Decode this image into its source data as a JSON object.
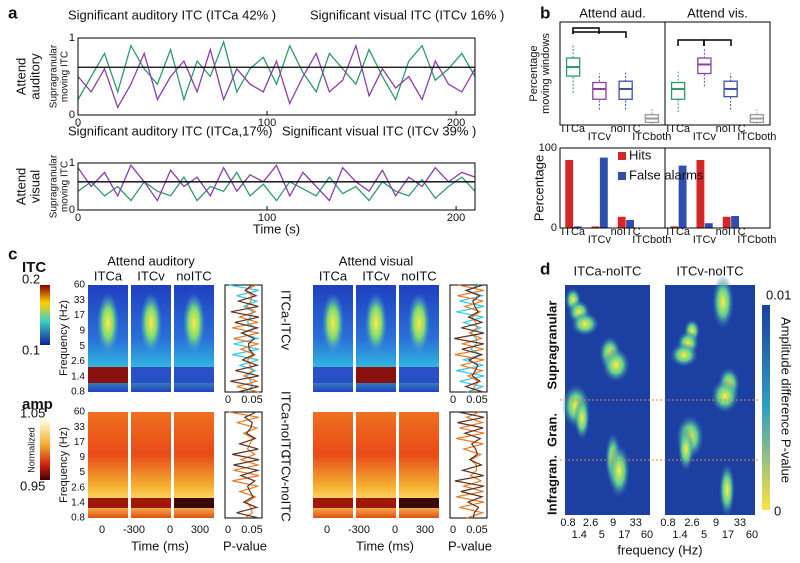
{
  "panel_labels": [
    "a",
    "b",
    "c",
    "d"
  ],
  "chart_data": [
    {
      "type": "line",
      "condition": [
        "Attend",
        "auditory"
      ],
      "ylabel": [
        "Supragranular",
        "moving ITC"
      ],
      "x": [
        0,
        7,
        14,
        21,
        28,
        35,
        42,
        49,
        56,
        63,
        70,
        77,
        84,
        91,
        98,
        105,
        112,
        119,
        126,
        133,
        140,
        147,
        154,
        161,
        168,
        175,
        182,
        189,
        196,
        203,
        210
      ],
      "series": [
        {
          "name": "Significant auditory ITC (ITCa 42% )",
          "color": "#2e9a6c",
          "values": [
            0.2,
            0.5,
            0.8,
            0.3,
            0.9,
            0.6,
            0.4,
            0.85,
            0.2,
            0.7,
            0.5,
            0.95,
            0.3,
            0.6,
            0.75,
            0.4,
            0.9,
            0.55,
            0.3,
            0.8,
            0.6,
            0.4,
            0.85,
            0.5,
            0.2,
            0.7,
            0.9,
            0.45,
            0.6,
            0.8,
            0.5
          ]
        },
        {
          "name": "Significant visual ITC (ITCv 16% )",
          "color": "#8a3fa6",
          "values": [
            0.5,
            0.3,
            0.6,
            0.1,
            0.4,
            0.8,
            0.2,
            0.5,
            0.7,
            0.3,
            0.85,
            0.2,
            0.6,
            0.4,
            0.3,
            0.7,
            0.15,
            0.5,
            0.8,
            0.3,
            0.45,
            0.9,
            0.25,
            0.6,
            0.35,
            0.5,
            0.2,
            0.7,
            0.4,
            0.3,
            0.6
          ]
        }
      ],
      "threshold": 0.62,
      "xlim": [
        0,
        210
      ],
      "xticks": [
        0,
        100,
        200
      ],
      "ylim": [
        0,
        1
      ],
      "yticks": [
        0,
        1
      ]
    },
    {
      "type": "line",
      "condition": [
        "Attend",
        "visual"
      ],
      "ylabel": [
        "Supragranular",
        "moving ITC"
      ],
      "xlabel": "Time (s)",
      "x": [
        0,
        7,
        14,
        21,
        28,
        35,
        42,
        49,
        56,
        63,
        70,
        77,
        84,
        91,
        98,
        105,
        112,
        119,
        126,
        133,
        140,
        147,
        154,
        161,
        168,
        175,
        182,
        189,
        196,
        203,
        210
      ],
      "series": [
        {
          "name": "Significant auditory ITC (ITCa,17%)",
          "color": "#2e9a6c",
          "values": [
            0.4,
            0.6,
            0.3,
            0.5,
            0.2,
            0.6,
            0.4,
            0.3,
            0.7,
            0.2,
            0.5,
            0.4,
            0.8,
            0.3,
            0.55,
            0.2,
            0.6,
            0.45,
            0.3,
            0.7,
            0.35,
            0.5,
            0.2,
            0.6,
            0.4,
            0.3,
            0.65,
            0.25,
            0.5,
            0.7,
            0.4
          ]
        },
        {
          "name": "Significant visual ITC (ITCv 39% )",
          "color": "#8a3fa6",
          "values": [
            0.9,
            0.5,
            0.8,
            0.3,
            0.95,
            0.6,
            0.2,
            0.85,
            0.5,
            0.7,
            0.3,
            0.9,
            0.4,
            0.75,
            0.6,
            0.95,
            0.3,
            0.8,
            0.5,
            0.2,
            0.9,
            0.6,
            0.4,
            0.85,
            0.3,
            0.7,
            0.5,
            0.9,
            0.6,
            0.8,
            0.7
          ]
        }
      ],
      "threshold": 0.6,
      "xlim": [
        0,
        210
      ],
      "xticks": [
        0,
        100,
        200
      ],
      "ylim": [
        0,
        1
      ],
      "yticks": [
        0,
        1
      ]
    },
    {
      "type": "box",
      "groups": [
        "Attend aud.",
        "Attend vis."
      ],
      "ylabel": [
        "Percentage",
        "moving windows"
      ],
      "categories": [
        "ITCa",
        "ITCv",
        "noITC",
        "ITCboth",
        "ITCa",
        "ITCv",
        "noITC",
        "ITCboth"
      ],
      "category_colors": [
        "#2e9a6c",
        "#8a3fa6",
        "#3a50a8",
        "#999999",
        "#2e9a6c",
        "#8a3fa6",
        "#3a50a8",
        "#999999"
      ],
      "median": [
        45,
        28,
        28,
        5,
        28,
        47,
        28,
        5
      ],
      "q1": [
        38,
        20,
        20,
        2,
        20,
        40,
        22,
        2
      ],
      "q3": [
        52,
        33,
        34,
        8,
        33,
        52,
        34,
        8
      ],
      "whisker_low": [
        25,
        12,
        12,
        0,
        10,
        30,
        12,
        0
      ],
      "whisker_high": [
        62,
        40,
        42,
        13,
        42,
        60,
        40,
        12
      ],
      "ylim": [
        0,
        80
      ]
    },
    {
      "type": "bar",
      "ylabel": "Percentage",
      "categories": [
        "ITCa",
        "ITCv",
        "noITC",
        "ITCboth",
        "ITCa",
        "ITCv",
        "noITC",
        "ITCboth"
      ],
      "category_colors": [
        "#2e9a6c",
        "#8a3fa6",
        "#3a50a8",
        "#999999",
        "#2e9a6c",
        "#8a3fa6",
        "#3a50a8",
        "#999999"
      ],
      "series": [
        {
          "name": "Hits",
          "color": "#d62728",
          "values": [
            85,
            2,
            14,
            0,
            2,
            85,
            14,
            0
          ]
        },
        {
          "name": "False alarms",
          "color": "#2f4fb0",
          "values": [
            2,
            88,
            10,
            0,
            78,
            6,
            15,
            0
          ]
        }
      ],
      "ylim": [
        0,
        100
      ],
      "yticks": [
        0,
        100
      ]
    }
  ],
  "panel_c": {
    "itc_label": "ITC",
    "itc_scale": [
      "0.2",
      "0.1"
    ],
    "amp_label": "amp",
    "amp_scale": [
      "1.05",
      "0.95"
    ],
    "scale_name": "Normalized",
    "freq_label": "Frequency (Hz)",
    "freq_ticks": [
      "60",
      "33",
      "17",
      "9",
      "5",
      "2.6",
      "1.4",
      "0.8"
    ],
    "conditions": [
      {
        "title": "Attend auditory",
        "columns": [
          "ITCa",
          "ITCv",
          "noITC"
        ]
      },
      {
        "title": "Attend visual",
        "columns": [
          "ITCa",
          "ITCv",
          "noITC"
        ]
      }
    ],
    "time_ticks": [
      "0",
      "-300",
      "0",
      "300"
    ],
    "time_label": "Time (ms)",
    "p_ticks": [
      "0",
      "0.05"
    ],
    "p_label": "P-value",
    "comparisons": [
      "ITCa-ITCv",
      "ITCa-noITC",
      "ITCv-noITC"
    ]
  },
  "panel_d": {
    "columns": [
      "ITCa-noITC",
      "ITCv-noITC"
    ],
    "layers": [
      "Supragranular",
      "Gran.",
      "Infragran."
    ],
    "freq_ticks": [
      "0.8",
      "1.4",
      "2.6",
      "5",
      "9",
      "17",
      "33",
      "60"
    ],
    "freq_label": "frequency (Hz)",
    "scale": [
      "0.01",
      "0"
    ],
    "scale_label": "Amplitude difference P-value"
  }
}
